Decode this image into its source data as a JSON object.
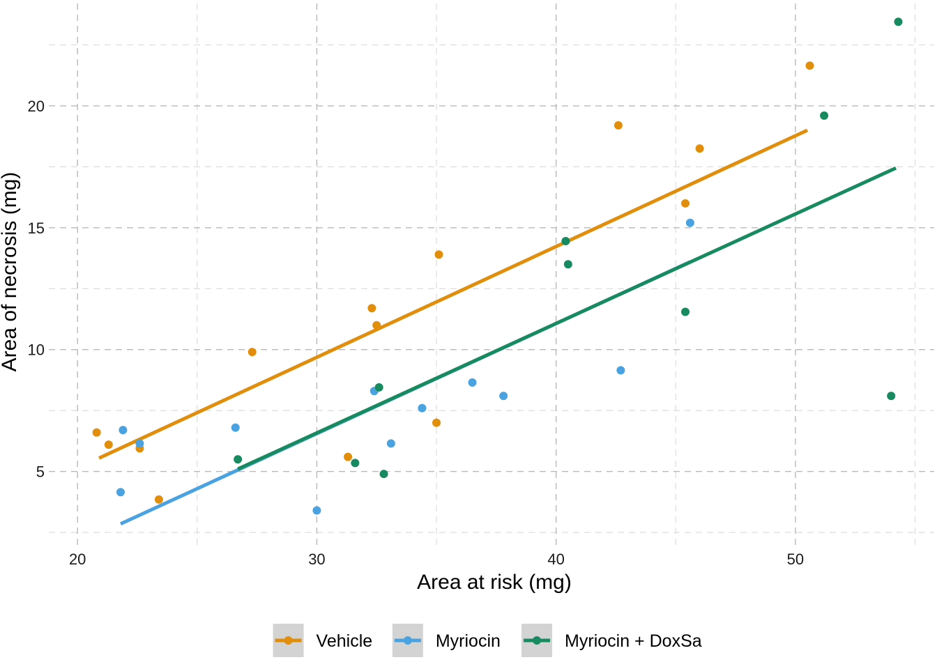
{
  "chart_data": {
    "type": "scatter",
    "title": "",
    "xlabel": "Area at risk (mg)",
    "ylabel": "Area of necrosis (mg)",
    "xlim": [
      18.8,
      55.8
    ],
    "ylim": [
      1.9,
      24.2
    ],
    "x_ticks": [
      20,
      30,
      40,
      50
    ],
    "y_ticks": [
      5,
      10,
      15,
      20
    ],
    "x_minor_ticks": [
      25,
      35,
      45,
      55
    ],
    "y_minor_ticks": [
      2.5,
      7.5,
      12.5,
      17.5,
      22.5
    ],
    "grid": true,
    "grid_style": "dashed",
    "legend_position": "bottom",
    "series": [
      {
        "name": "Vehicle",
        "color": "#E08E0B",
        "points": [
          [
            20.8,
            6.6
          ],
          [
            21.3,
            6.1
          ],
          [
            22.6,
            5.95
          ],
          [
            23.4,
            3.85
          ],
          [
            27.3,
            9.9
          ],
          [
            31.3,
            5.6
          ],
          [
            32.3,
            11.7
          ],
          [
            32.5,
            11.0
          ],
          [
            35.0,
            7.0
          ],
          [
            35.1,
            13.9
          ],
          [
            42.6,
            19.2
          ],
          [
            45.4,
            16.0
          ],
          [
            46.0,
            18.25
          ],
          [
            50.6,
            21.65
          ]
        ],
        "fit": [
          [
            20.9,
            5.55
          ],
          [
            50.5,
            19.0
          ]
        ]
      },
      {
        "name": "Myriocin",
        "color": "#4AA3E0",
        "points": [
          [
            21.8,
            4.15
          ],
          [
            21.9,
            6.7
          ],
          [
            22.6,
            6.15
          ],
          [
            26.6,
            6.8
          ],
          [
            30.0,
            3.4
          ],
          [
            32.4,
            8.3
          ],
          [
            33.1,
            6.15
          ],
          [
            34.4,
            7.6
          ],
          [
            36.5,
            8.65
          ],
          [
            37.8,
            8.1
          ],
          [
            42.7,
            9.15
          ],
          [
            45.6,
            15.2
          ]
        ],
        "fit": [
          [
            21.8,
            2.85
          ],
          [
            45.6,
            13.6
          ]
        ]
      },
      {
        "name": "Myriocin + DoxSa",
        "color": "#178A60",
        "points": [
          [
            26.7,
            5.5
          ],
          [
            31.6,
            5.35
          ],
          [
            32.6,
            8.45
          ],
          [
            32.8,
            4.9
          ],
          [
            40.4,
            14.45
          ],
          [
            40.5,
            13.5
          ],
          [
            45.4,
            11.55
          ],
          [
            51.2,
            19.6
          ],
          [
            54.0,
            8.1
          ],
          [
            54.3,
            23.45
          ]
        ],
        "fit": [
          [
            26.7,
            5.1
          ],
          [
            54.2,
            17.45
          ]
        ]
      }
    ]
  }
}
